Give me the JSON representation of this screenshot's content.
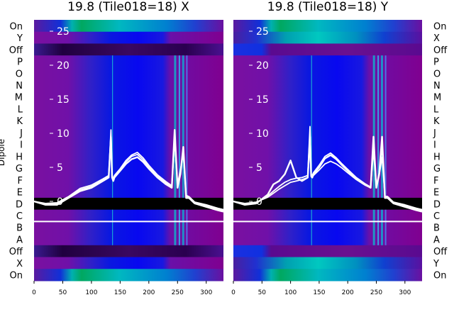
{
  "chart_data": {
    "type": "heatmap",
    "panels": [
      {
        "title": "19.8 (Tile018=18) X",
        "ylabel": "Dipole",
        "left_labels": [
          "On",
          "Y",
          "Off",
          "P",
          "O",
          "N",
          "M",
          "L",
          "K",
          "J",
          "I",
          "H",
          "G",
          "F",
          "E",
          "D",
          "C",
          "B",
          "A",
          "Off",
          "X",
          "On"
        ],
        "inner_ticks": [
          "25",
          "20",
          "15",
          "10",
          "5",
          "0"
        ],
        "inner_values": [
          25,
          20,
          15,
          10,
          5,
          0
        ],
        "xticks": [
          "0",
          "50",
          "100",
          "150",
          "200",
          "250",
          "300"
        ],
        "xvalues": [
          0,
          50,
          100,
          150,
          200,
          250,
          300
        ],
        "xlim": [
          0,
          330
        ],
        "line_series": [
          {
            "x": [
              0,
              20,
              40,
              60,
              80,
              100,
              120,
              130,
              134,
              136,
              138,
              140,
              150,
              160,
              170,
              180,
              190,
              200,
              215,
              230,
              240,
              245,
              250,
              255,
              260,
              265,
              270,
              280,
              300,
              320,
              330
            ],
            "y": [
              0,
              -0.5,
              -0.5,
              0.5,
              1.5,
              2,
              3,
              3.5,
              9.5,
              3.5,
              3,
              3.5,
              4.5,
              5.5,
              6.2,
              6.5,
              5.8,
              4.8,
              3.5,
              2.5,
              2,
              10.5,
              2,
              4,
              8,
              0.5,
              0.5,
              -0.3,
              -0.8,
              -1.3,
              -1.5
            ]
          },
          {
            "x": [
              0,
              20,
              40,
              60,
              80,
              100,
              120,
              130,
              134,
              136,
              138,
              140,
              150,
              160,
              170,
              180,
              190,
              200,
              215,
              230,
              240,
              245,
              250,
              255,
              260,
              265,
              270,
              280,
              300,
              320,
              330
            ],
            "y": [
              0,
              -0.4,
              -0.3,
              0.6,
              1.7,
              2.2,
              3.1,
              3.6,
              10.5,
              3.6,
              3.1,
              3.6,
              4.6,
              5.8,
              6.6,
              6.9,
              6.1,
              5.1,
              3.7,
              2.7,
              2.2,
              9.8,
              2.3,
              4.3,
              7.5,
              0.7,
              0.6,
              -0.2,
              -0.6,
              -1.1,
              -1.3
            ]
          },
          {
            "x": [
              0,
              20,
              40,
              60,
              80,
              100,
              120,
              130,
              134,
              136,
              138,
              140,
              150,
              160,
              170,
              180,
              190,
              200,
              215,
              230,
              240,
              245,
              250,
              255,
              260,
              265,
              270,
              280,
              300,
              320,
              330
            ],
            "y": [
              0,
              -0.3,
              -0.2,
              0.7,
              1.9,
              2.4,
              3.3,
              3.8,
              8.8,
              3.8,
              3.3,
              3.8,
              4.8,
              6.0,
              6.8,
              7.2,
              6.4,
              5.3,
              3.9,
              2.9,
              2.3,
              9.0,
              2.5,
              4.6,
              7.0,
              0.9,
              0.7,
              -0.1,
              -0.5,
              -1.0,
              -1.2
            ]
          }
        ]
      },
      {
        "title": "19.8 (Tile018=18) Y",
        "right_labels": [
          "On",
          "X",
          "Off",
          "P",
          "O",
          "N",
          "M",
          "L",
          "K",
          "J",
          "I",
          "H",
          "G",
          "F",
          "E",
          "D",
          "C",
          "B",
          "A",
          "Off",
          "Y",
          "On"
        ],
        "inner_ticks": [
          "25",
          "20",
          "15",
          "10",
          "5",
          "0"
        ],
        "inner_values": [
          25,
          20,
          15,
          10,
          5,
          0
        ],
        "xticks": [
          "0",
          "50",
          "100",
          "150",
          "200",
          "250",
          "300"
        ],
        "xvalues": [
          0,
          50,
          100,
          150,
          200,
          250,
          300
        ],
        "xlim": [
          0,
          330
        ],
        "line_series": [
          {
            "x": [
              0,
              20,
              40,
              60,
              70,
              80,
              90,
              100,
              110,
              120,
              130,
              134,
              136,
              138,
              140,
              150,
              160,
              170,
              180,
              190,
              200,
              215,
              230,
              240,
              245,
              250,
              255,
              260,
              265,
              270,
              280,
              300,
              320,
              330
            ],
            "y": [
              0,
              -0.5,
              -0.3,
              1,
              2.5,
              3,
              4,
              6,
              3.5,
              3,
              3.5,
              9.5,
              3.8,
              3.5,
              4,
              5,
              6.3,
              6.8,
              6.2,
              5.3,
              4.5,
              3.3,
              2.5,
              2,
              9.5,
              2,
              4,
              9.5,
              0.5,
              0.5,
              -0.3,
              -0.8,
              -1.3,
              -1.5
            ]
          },
          {
            "x": [
              0,
              20,
              40,
              60,
              70,
              80,
              90,
              100,
              110,
              120,
              130,
              134,
              136,
              138,
              140,
              150,
              160,
              170,
              180,
              190,
              200,
              215,
              230,
              240,
              245,
              250,
              255,
              260,
              265,
              270,
              280,
              300,
              320,
              330
            ],
            "y": [
              0,
              -0.4,
              -0.2,
              0.8,
              1.5,
              2.2,
              2.8,
              3.2,
              3.4,
              3.5,
              3.8,
              11,
              4,
              3.8,
              4.2,
              5.3,
              6.6,
              7.1,
              6.4,
              5.5,
              4.7,
              3.5,
              2.6,
              2.1,
              8.5,
              2.2,
              4.2,
              8,
              0.7,
              0.6,
              -0.2,
              -0.6,
              -1.1,
              -1.3
            ]
          },
          {
            "x": [
              0,
              20,
              40,
              60,
              70,
              80,
              90,
              100,
              110,
              120,
              130,
              134,
              136,
              138,
              140,
              150,
              160,
              170,
              180,
              190,
              200,
              215,
              230,
              240,
              245,
              250,
              255,
              260,
              265,
              270,
              280,
              300,
              320,
              330
            ],
            "y": [
              0,
              -0.3,
              -0.1,
              0.6,
              1.2,
              1.8,
              2.3,
              2.8,
              3,
              3.2,
              3.5,
              8.5,
              3.6,
              3.5,
              3.8,
              4.6,
              5.5,
              5.9,
              5.5,
              4.9,
              4.2,
              3.2,
              2.4,
              2,
              7.5,
              2.1,
              3.8,
              6.5,
              0.8,
              0.7,
              -0.1,
              -0.5,
              -1.0,
              -1.2
            ]
          }
        ]
      }
    ]
  }
}
